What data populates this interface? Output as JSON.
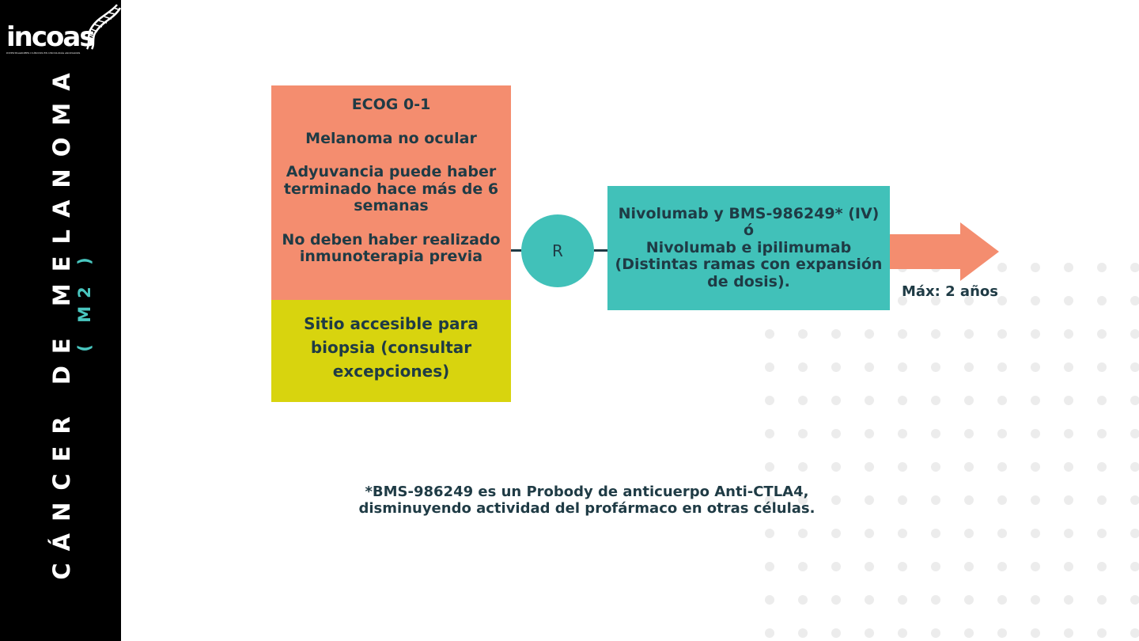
{
  "brand": {
    "name": "incoas",
    "tagline": "INVESTIGADORES CLÍNICOS EN ONCOLOGÍA ASOCIADOS"
  },
  "sidebar": {
    "title": "CÁNCER DE MELANOMA",
    "subtitle": "( M2 )"
  },
  "diagram": {
    "criteria": [
      "ECOG 0-1",
      "Melanoma no ocular",
      "Adyuvancia puede haber terminado hace más de 6 semanas",
      "No deben haber realizado inmunoterapia previa"
    ],
    "biopsy": "Sitio accesible para biopsia (consultar excepciones)",
    "randomization": "R",
    "treatment": {
      "line1": "Nivolumab y BMS-986249* (IV)",
      "line2": "ó",
      "line3": "Nivolumab e ipilimumab",
      "line4": "(Distintas ramas con expansión de dosis)."
    },
    "duration": "Máx: 2 años"
  },
  "footnote": {
    "line1": "*BMS-986249 es un Probody de anticuerpo Anti-CTLA4,",
    "line2": "disminuyendo actividad del profármaco en otras células."
  },
  "colors": {
    "sidebar": "#000000",
    "criteria_box": "#f48d6f",
    "biopsy_box": "#d8d40e",
    "teal": "#41c1b9",
    "arrow": "#f48d6f",
    "text": "#1f3b45",
    "dots": "#ececec"
  }
}
